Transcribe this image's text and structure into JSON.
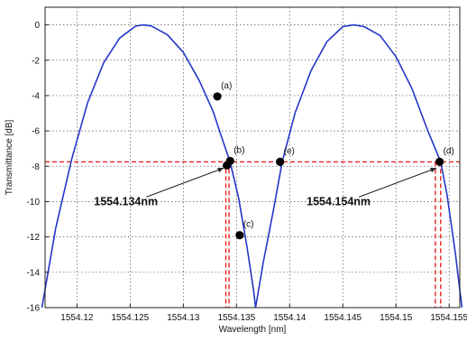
{
  "chart_data": {
    "type": "line",
    "title": "",
    "xlabel": "Wavelength [nm]",
    "ylabel": "Transmittance [dB]",
    "xlim": [
      1554.117,
      1554.156
    ],
    "ylim": [
      -16,
      1
    ],
    "grid": true,
    "x_ticks": [
      1554.12,
      1554.125,
      1554.13,
      1554.135,
      1554.14,
      1554.145,
      1554.15,
      1554.155
    ],
    "x_tick_labels": [
      "1554.12",
      "1554.125",
      "1554.13",
      "1554.135",
      "1554.14",
      "1554.145",
      "1554.15",
      "1554.155"
    ],
    "y_ticks": [
      0,
      -2,
      -4,
      -6,
      -8,
      -10,
      -12,
      -14,
      -16
    ],
    "y_tick_labels": [
      "0",
      "-2",
      "-4",
      "-6",
      "-8",
      "-10",
      "-12",
      "-14",
      "-16"
    ],
    "series": [
      {
        "color": "#2436c8",
        "points": [
          [
            1554.1167,
            -16.0
          ],
          [
            1554.118,
            -11.5
          ],
          [
            1554.1195,
            -7.6
          ],
          [
            1554.121,
            -4.4
          ],
          [
            1554.1225,
            -2.15
          ],
          [
            1554.124,
            -0.75
          ],
          [
            1554.1255,
            -0.07
          ],
          [
            1554.12625,
            0.0
          ],
          [
            1554.127,
            -0.06
          ],
          [
            1554.1285,
            -0.55
          ],
          [
            1554.13,
            -1.55
          ],
          [
            1554.1315,
            -3.15
          ],
          [
            1554.1328,
            -4.9
          ],
          [
            1554.1336,
            -6.35
          ],
          [
            1554.1344,
            -7.75
          ],
          [
            1554.1352,
            -9.8
          ],
          [
            1554.136,
            -12.6
          ],
          [
            1554.1366,
            -15.0
          ],
          [
            1554.1368,
            -16.0
          ]
        ]
      },
      {
        "color": "#2436c8",
        "points": [
          [
            1554.1368,
            -16.0
          ],
          [
            1554.1375,
            -13.5
          ],
          [
            1554.1385,
            -10.4
          ],
          [
            1554.1393,
            -7.75
          ],
          [
            1554.1405,
            -5.0
          ],
          [
            1554.142,
            -2.6
          ],
          [
            1554.1435,
            -0.95
          ],
          [
            1554.145,
            -0.1
          ],
          [
            1554.146,
            0.0
          ],
          [
            1554.147,
            -0.1
          ],
          [
            1554.1485,
            -0.6
          ],
          [
            1554.15,
            -1.8
          ],
          [
            1554.1515,
            -3.6
          ],
          [
            1554.153,
            -6.0
          ],
          [
            1554.1542,
            -7.75
          ],
          [
            1554.1548,
            -9.6
          ],
          [
            1554.1556,
            -13.0
          ],
          [
            1554.1562,
            -16.0
          ]
        ]
      }
    ],
    "highlight_points": [
      {
        "label": "(a)",
        "x": 1554.1332,
        "y": -4.05
      },
      {
        "label": "(b)",
        "x": 1554.1344,
        "y": -7.7
      },
      {
        "label": "",
        "x": 1554.1341,
        "y": -7.95
      },
      {
        "label": "(c)",
        "x": 1554.1353,
        "y": -11.9
      },
      {
        "label": "(e)",
        "x": 1554.1391,
        "y": -7.75
      },
      {
        "label": "(d)",
        "x": 1554.1541,
        "y": -7.75
      }
    ],
    "reference_lines": {
      "color": "#e8221c",
      "horizontal_y": -7.75,
      "vertical_x": [
        1554.134,
        1554.1343,
        1554.1537,
        1554.1542
      ]
    },
    "annotations": [
      {
        "text": "1554.134nm",
        "x": 1554.1216,
        "y": -10.2,
        "arrow_to_x": 1554.1338,
        "arrow_to_y": -8.1
      },
      {
        "text": "1554.154nm",
        "x": 1554.1416,
        "y": -10.2,
        "arrow_to_x": 1554.1538,
        "arrow_to_y": -8.1
      }
    ]
  }
}
